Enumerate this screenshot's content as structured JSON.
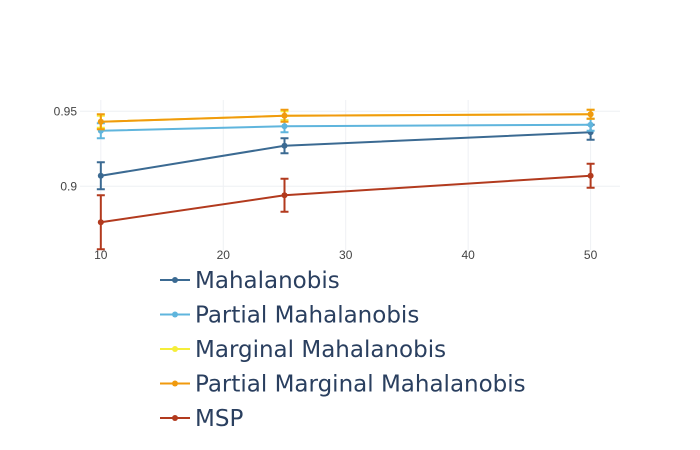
{
  "chart_data": {
    "type": "line",
    "title": "",
    "xlabel": "",
    "ylabel": "",
    "x": [
      10,
      25,
      50
    ],
    "xlim": [
      8.3,
      52.4
    ],
    "ylim": [
      0.8575,
      0.9575
    ],
    "x_ticks": [
      10,
      20,
      30,
      40,
      50
    ],
    "y_ticks": [
      0.9,
      0.95
    ],
    "x_tick_labels": [
      "10",
      "20",
      "30",
      "40",
      "50"
    ],
    "y_tick_labels": [
      "0.9",
      "0.95"
    ],
    "grid": true,
    "legend_position": "bottom",
    "series": [
      {
        "name": "Mahalanobis",
        "color": "#3b6a92",
        "values": [
          0.907,
          0.927,
          0.936
        ],
        "errors": [
          0.009,
          0.005,
          0.005
        ]
      },
      {
        "name": "Partial Mahalanobis",
        "color": "#5fb5dd",
        "values": [
          0.937,
          0.94,
          0.941
        ],
        "errors": [
          0.005,
          0.004,
          0.004
        ]
      },
      {
        "name": "Marginal Mahalanobis",
        "color": "#f5ee3a",
        "values": [
          0.943,
          0.947,
          0.948
        ],
        "errors": [
          0.004,
          0.003,
          0.003
        ]
      },
      {
        "name": "Partial Marginal Mahalanobis",
        "color": "#f09a0e",
        "values": [
          0.943,
          0.947,
          0.948
        ],
        "errors": [
          0.005,
          0.004,
          0.003
        ]
      },
      {
        "name": "MSP",
        "color": "#b23a1e",
        "values": [
          0.876,
          0.894,
          0.907
        ],
        "errors": [
          0.018,
          0.011,
          0.008
        ]
      }
    ]
  }
}
